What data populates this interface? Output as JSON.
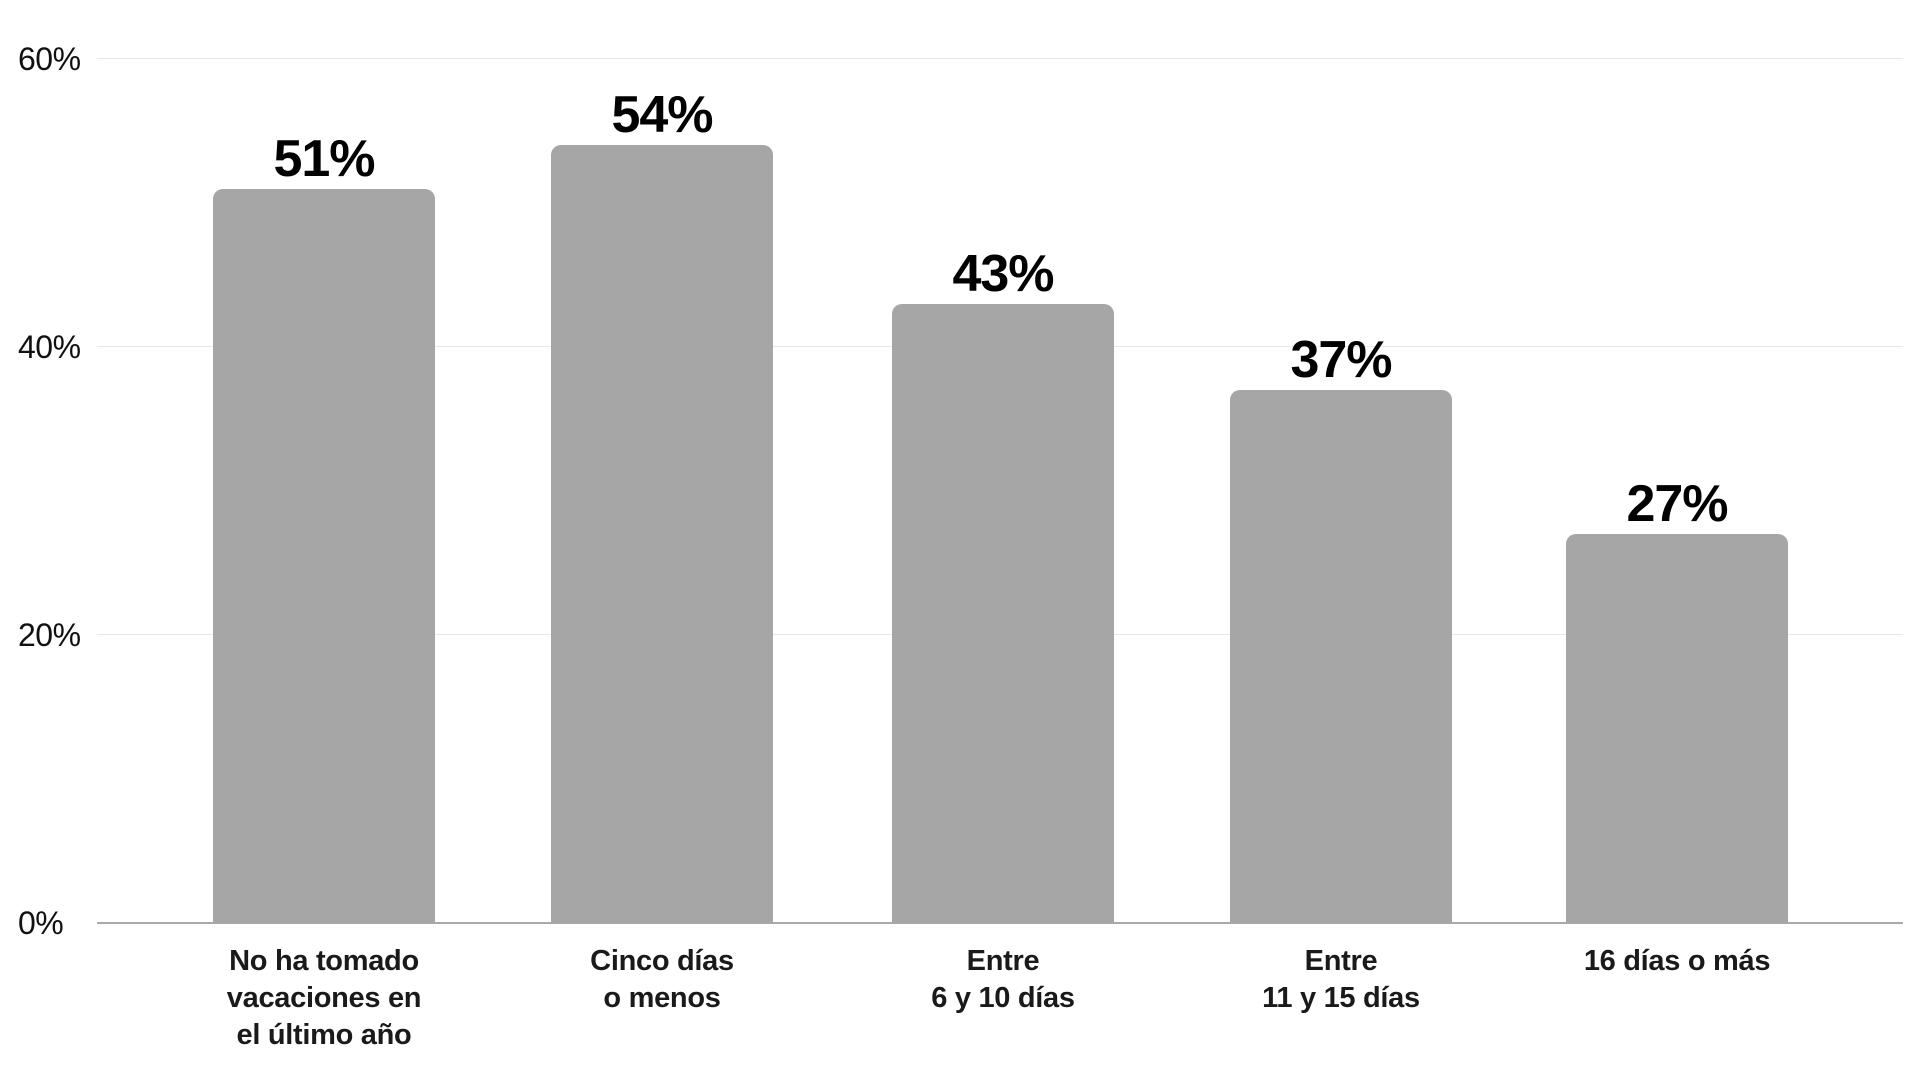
{
  "chart_data": {
    "type": "bar",
    "title": "",
    "categories": [
      "No ha tomado\nvacaciones en\nel último año",
      "Cinco días\no menos",
      "Entre\n6 y 10 días",
      "Entre\n11 y 15 días",
      "16 días o más"
    ],
    "values": [
      51,
      54,
      43,
      37,
      27
    ],
    "value_labels": [
      "51%",
      "54%",
      "43%",
      "37%",
      "27%"
    ],
    "yticks": [
      {
        "value": 0,
        "label": "0%"
      },
      {
        "value": 20,
        "label": "20%"
      },
      {
        "value": 40,
        "label": "40%"
      },
      {
        "value": 60,
        "label": "60%"
      }
    ],
    "ylim": [
      0,
      60
    ],
    "xlabel": "",
    "ylabel": "",
    "grid": "horizontal",
    "legend": "none",
    "bar_color": "#a6a6a6",
    "gridline_color": "#e7e7e7",
    "axis_line_color": "#a9a9a9",
    "value_label_color": "#000000",
    "tick_label_color": "#111111",
    "category_label_color": "#1a1a1a"
  }
}
